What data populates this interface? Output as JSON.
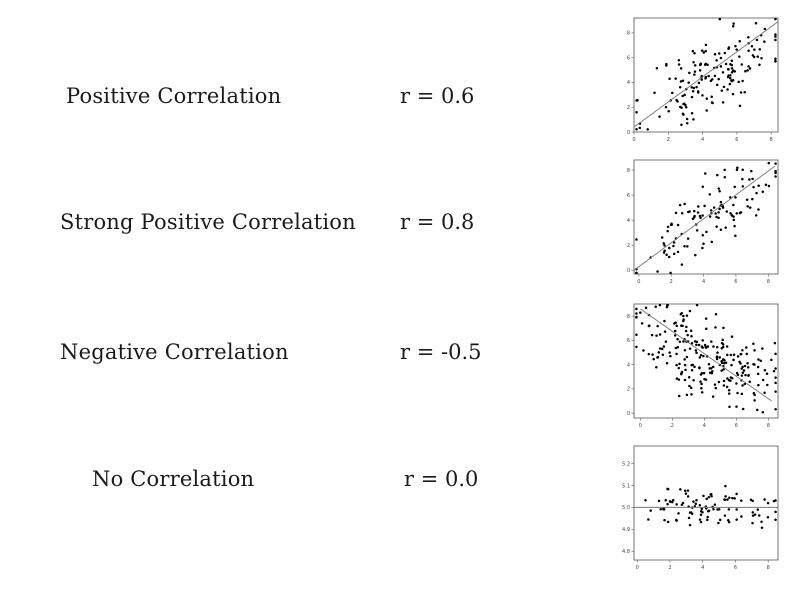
{
  "rows": [
    {
      "label": "Positive Correlation",
      "r_text": "r = 0.6"
    },
    {
      "label": "Strong Positive Correlation",
      "r_text": "r = 0.8"
    },
    {
      "label": "Negative Correlation",
      "r_text": "r = -0.5"
    },
    {
      "label": "No Correlation",
      "r_text": "r = 0.0"
    }
  ],
  "chart_data": [
    {
      "type": "scatter",
      "r": 0.6,
      "title": "",
      "xlabel": "",
      "ylabel": "",
      "xlim": [
        0,
        8.4
      ],
      "ylim": [
        0,
        9.2
      ],
      "xticks": [
        "0",
        "2",
        "4",
        "6",
        "8"
      ],
      "yticks": [
        "0",
        "2",
        "4",
        "6",
        "8"
      ],
      "ytick_values": [
        0,
        2,
        4,
        6,
        8
      ],
      "trend_line": {
        "x": [
          0,
          8.4
        ],
        "y": [
          0.4,
          8.9
        ]
      },
      "n_points": 160,
      "center": [
        4.6,
        4.6
      ],
      "spread": [
        1.9,
        2.1
      ],
      "seed": 11,
      "line_color": "#777777",
      "point_color": "#000000"
    },
    {
      "type": "scatter",
      "r": 0.8,
      "title": "",
      "xlabel": "",
      "ylabel": "",
      "xlim": [
        -0.3,
        8.6
      ],
      "ylim": [
        -0.3,
        8.8
      ],
      "xticks": [
        "0",
        "2",
        "4",
        "6",
        "8"
      ],
      "yticks": [
        "0",
        "2",
        "4",
        "6",
        "8"
      ],
      "ytick_values": [
        0,
        2,
        4,
        6,
        8
      ],
      "trend_line": {
        "x": [
          -0.3,
          8.4
        ],
        "y": [
          0.0,
          8.3
        ]
      },
      "n_points": 120,
      "center": [
        4.2,
        4.1
      ],
      "spread": [
        2.1,
        2.0
      ],
      "seed": 23,
      "line_color": "#777777",
      "point_color": "#000000"
    },
    {
      "type": "scatter",
      "r": -0.5,
      "title": "",
      "xlabel": "",
      "ylabel": "",
      "xlim": [
        -0.4,
        8.6
      ],
      "ylim": [
        -0.4,
        9.0
      ],
      "xticks": [
        "0",
        "2",
        "4",
        "6",
        "8"
      ],
      "yticks": [
        "0",
        "2",
        "4",
        "6",
        "8"
      ],
      "ytick_values": [
        0,
        2,
        4,
        6,
        8
      ],
      "trend_line": {
        "x": [
          0.0,
          8.2
        ],
        "y": [
          8.6,
          1.0
        ]
      },
      "n_points": 240,
      "center": [
        4.0,
        4.8
      ],
      "spread": [
        2.1,
        2.0
      ],
      "seed": 37,
      "line_color": "#777777",
      "point_color": "#000000"
    },
    {
      "type": "scatter",
      "r": 0.0,
      "title": "",
      "xlabel": "",
      "ylabel": "",
      "xlim": [
        -0.2,
        8.6
      ],
      "ylim": [
        4.76,
        5.28
      ],
      "xticks": [
        "0",
        "2",
        "4",
        "6",
        "8"
      ],
      "yticks": [
        "4.8",
        "4.9",
        "5.0",
        "5.1",
        "5.2"
      ],
      "ytick_values": [
        4.8,
        4.9,
        5.0,
        5.1,
        5.2
      ],
      "trend_line": {
        "x": [
          -0.2,
          8.6
        ],
        "y": [
          5.0,
          5.0
        ]
      },
      "n_points": 100,
      "center": [
        4.2,
        5.0
      ],
      "spread": [
        2.2,
        0.045
      ],
      "seed": 51,
      "line_color": "#777777",
      "point_color": "#000000"
    }
  ]
}
